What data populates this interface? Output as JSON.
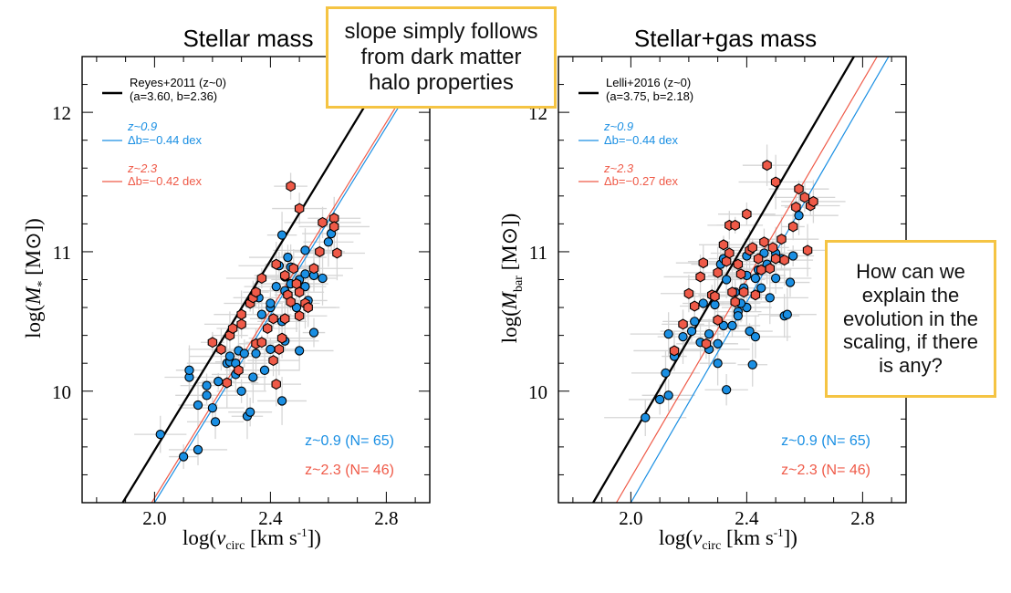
{
  "panels": [
    {
      "title": "Stellar mass",
      "ylabel_main": "log(",
      "ylabel_sym": "M",
      "ylabel_sub": "*",
      "ylabel_unit": " [M⊙])",
      "xlabel_main": "log(",
      "xlabel_sym": "v",
      "xlabel_sub": "circ",
      "xlabel_unit": " [km s",
      "xlabel_sup": "-1",
      "xlabel_close": "])",
      "legend": {
        "ref_name": "Reyes+2011 (z~0)",
        "ref_params": "(a=3.60, b=2.36)",
        "z09_label": "z~0.9",
        "z09_offset": "Δb=−0.44 dex",
        "z23_label": "z~2.3",
        "z23_offset": "Δb=−0.42 dex"
      },
      "count_z09": "z~0.9  (N= 65)",
      "count_z23": "z~2.3  (N= 46)"
    },
    {
      "title": "Stellar+gas mass",
      "ylabel_main": "log(",
      "ylabel_sym": "M",
      "ylabel_sub": "bar",
      "ylabel_unit": " [M⊙])",
      "xlabel_main": "log(",
      "xlabel_sym": "v",
      "xlabel_sub": "circ",
      "xlabel_unit": " [km s",
      "xlabel_sup": "-1",
      "xlabel_close": "])",
      "legend": {
        "ref_name": "Lelli+2016 (z~0)",
        "ref_params": "(a=3.75, b=2.18)",
        "z09_label": "z~0.9",
        "z09_offset": "Δb=−0.44 dex",
        "z23_label": "z~2.3",
        "z23_offset": "Δb=−0.27 dex"
      },
      "count_z09": "z~0.9  (N= 65)",
      "count_z23": "z~2.3  (N= 46)"
    }
  ],
  "callouts": {
    "top": "slope simply follows from dark matter halo properties",
    "right": "How can we explain the evolution in the scaling, if there is any?"
  },
  "colors": {
    "z09": "#1a8fe3",
    "z23": "#ef5a48",
    "reference": "#000000",
    "errorbar": "#d6d6d6",
    "callout_border": "#f5c443"
  },
  "chart_data": [
    {
      "type": "scatter",
      "title": "Stellar mass",
      "xlabel": "log(v_circ [km s^-1])",
      "ylabel": "log(M_* [M_sun])",
      "xlim": [
        1.75,
        2.95
      ],
      "ylim": [
        9.2,
        12.4
      ],
      "xticks": [
        2.0,
        2.4,
        2.8
      ],
      "yticks": [
        10,
        11,
        12
      ],
      "lines": [
        {
          "name": "Reyes+2011 (z~0)",
          "color": "#000000",
          "points": [
            [
              1.89,
              9.2
            ],
            [
              2.83,
              12.4
            ]
          ]
        },
        {
          "name": "z~0.9",
          "color": "#1a8fe3",
          "points": [
            [
              2.0,
              9.2
            ],
            [
              2.95,
              12.4
            ]
          ]
        },
        {
          "name": "z~2.3",
          "color": "#ef5a48",
          "points": [
            [
              1.99,
              9.2
            ],
            [
              2.94,
              12.4
            ]
          ]
        }
      ],
      "series": [
        {
          "name": "z~0.9",
          "marker": "circle",
          "color": "#1a8fe3",
          "points": [
            [
              2.02,
              9.69
            ],
            [
              2.1,
              9.53
            ],
            [
              2.12,
              10.1
            ],
            [
              2.12,
              10.15
            ],
            [
              2.15,
              9.58
            ],
            [
              2.15,
              9.9
            ],
            [
              2.18,
              9.97
            ],
            [
              2.18,
              10.04
            ],
            [
              2.2,
              9.88
            ],
            [
              2.21,
              9.78
            ],
            [
              2.22,
              10.07
            ],
            [
              2.25,
              10.2
            ],
            [
              2.26,
              10.21
            ],
            [
              2.26,
              10.25
            ],
            [
              2.28,
              10.12
            ],
            [
              2.28,
              10.2
            ],
            [
              2.29,
              10.29
            ],
            [
              2.3,
              10.0
            ],
            [
              2.31,
              10.27
            ],
            [
              2.32,
              9.82
            ],
            [
              2.33,
              9.85
            ],
            [
              2.34,
              10.1
            ],
            [
              2.35,
              10.27
            ],
            [
              2.36,
              10.67
            ],
            [
              2.37,
              10.55
            ],
            [
              2.38,
              10.15
            ],
            [
              2.4,
              10.3
            ],
            [
              2.4,
              10.6
            ],
            [
              2.4,
              10.63
            ],
            [
              2.42,
              10.75
            ],
            [
              2.43,
              10.9
            ],
            [
              2.44,
              10.5
            ],
            [
              2.44,
              9.93
            ],
            [
              2.45,
              10.72
            ],
            [
              2.45,
              10.82
            ],
            [
              2.45,
              10.36
            ],
            [
              2.47,
              10.89
            ],
            [
              2.47,
              10.77
            ],
            [
              2.49,
              10.6
            ],
            [
              2.5,
              10.29
            ],
            [
              2.5,
              10.8
            ],
            [
              2.52,
              10.75
            ],
            [
              2.52,
              10.84
            ],
            [
              2.52,
              11.01
            ],
            [
              2.53,
              10.65
            ],
            [
              2.55,
              10.42
            ],
            [
              2.55,
              10.83
            ],
            [
              2.58,
              10.81
            ],
            [
              2.6,
              11.07
            ],
            [
              2.61,
              11.13
            ],
            [
              2.44,
              11.12
            ],
            [
              2.46,
              10.96
            ]
          ]
        },
        {
          "name": "z~2.3",
          "marker": "hexagon",
          "color": "#ef5a48",
          "points": [
            [
              2.2,
              10.35
            ],
            [
              2.23,
              10.3
            ],
            [
              2.25,
              10.06
            ],
            [
              2.26,
              10.4
            ],
            [
              2.27,
              10.45
            ],
            [
              2.29,
              10.15
            ],
            [
              2.3,
              10.55
            ],
            [
              2.3,
              10.48
            ],
            [
              2.33,
              10.63
            ],
            [
              2.34,
              10.67
            ],
            [
              2.35,
              10.71
            ],
            [
              2.35,
              10.34
            ],
            [
              2.37,
              10.81
            ],
            [
              2.37,
              10.35
            ],
            [
              2.39,
              10.45
            ],
            [
              2.41,
              10.52
            ],
            [
              2.41,
              10.22
            ],
            [
              2.42,
              10.91
            ],
            [
              2.42,
              10.05
            ],
            [
              2.43,
              10.3
            ],
            [
              2.44,
              10.38
            ],
            [
              2.45,
              10.52
            ],
            [
              2.46,
              10.69
            ],
            [
              2.47,
              10.64
            ],
            [
              2.47,
              11.47
            ],
            [
              2.48,
              10.88
            ],
            [
              2.49,
              10.77
            ],
            [
              2.5,
              10.54
            ],
            [
              2.5,
              11.31
            ],
            [
              2.52,
              10.63
            ],
            [
              2.53,
              10.6
            ],
            [
              2.55,
              10.88
            ],
            [
              2.57,
              11.0
            ],
            [
              2.58,
              11.21
            ],
            [
              2.62,
              11.24
            ],
            [
              2.62,
              11.18
            ],
            [
              2.63,
              10.99
            ],
            [
              2.45,
              10.83
            ],
            [
              2.5,
              10.71
            ]
          ]
        }
      ],
      "annotations": [
        "z~0.9 (N= 65)",
        "z~2.3 (N= 46)"
      ]
    },
    {
      "type": "scatter",
      "title": "Stellar+gas mass",
      "xlabel": "log(v_circ [km s^-1])",
      "ylabel": "log(M_bar [M_sun])",
      "xlim": [
        1.75,
        2.95
      ],
      "ylim": [
        9.2,
        12.4
      ],
      "xticks": [
        2.0,
        2.4,
        2.8
      ],
      "yticks": [
        10,
        11,
        12
      ],
      "lines": [
        {
          "name": "Lelli+2016 (z~0)",
          "color": "#000000",
          "points": [
            [
              1.87,
              9.2
            ],
            [
              2.77,
              12.4
            ]
          ]
        },
        {
          "name": "z~0.9",
          "color": "#1a8fe3",
          "points": [
            [
              2.0,
              9.2
            ],
            [
              2.89,
              12.4
            ]
          ]
        },
        {
          "name": "z~2.3",
          "color": "#ef5a48",
          "points": [
            [
              1.95,
              9.2
            ],
            [
              2.85,
              12.4
            ]
          ]
        }
      ],
      "series": [
        {
          "name": "z~0.9",
          "marker": "circle",
          "color": "#1a8fe3",
          "points": [
            [
              2.05,
              9.81
            ],
            [
              2.1,
              9.94
            ],
            [
              2.12,
              10.13
            ],
            [
              2.13,
              9.97
            ],
            [
              2.13,
              10.41
            ],
            [
              2.15,
              10.25
            ],
            [
              2.18,
              10.39
            ],
            [
              2.21,
              10.43
            ],
            [
              2.22,
              10.5
            ],
            [
              2.24,
              10.35
            ],
            [
              2.25,
              10.63
            ],
            [
              2.27,
              10.3
            ],
            [
              2.27,
              10.41
            ],
            [
              2.29,
              10.62
            ],
            [
              2.3,
              10.2
            ],
            [
              2.3,
              10.34
            ],
            [
              2.31,
              10.91
            ],
            [
              2.32,
              10.47
            ],
            [
              2.33,
              10.01
            ],
            [
              2.33,
              10.8
            ],
            [
              2.35,
              10.47
            ],
            [
              2.36,
              10.71
            ],
            [
              2.37,
              10.57
            ],
            [
              2.37,
              10.54
            ],
            [
              2.39,
              10.74
            ],
            [
              2.4,
              10.6
            ],
            [
              2.4,
              10.83
            ],
            [
              2.4,
              10.97
            ],
            [
              2.41,
              10.43
            ],
            [
              2.42,
              10.19
            ],
            [
              2.43,
              10.81
            ],
            [
              2.44,
              10.87
            ],
            [
              2.45,
              10.74
            ],
            [
              2.46,
              10.99
            ],
            [
              2.47,
              10.91
            ],
            [
              2.48,
              10.67
            ],
            [
              2.5,
              10.99
            ],
            [
              2.5,
              10.81
            ],
            [
              2.52,
              10.95
            ],
            [
              2.53,
              10.54
            ],
            [
              2.54,
              10.55
            ],
            [
              2.55,
              10.78
            ],
            [
              2.56,
              10.97
            ],
            [
              2.58,
              11.26
            ],
            [
              2.43,
              10.39
            ],
            [
              2.38,
              10.63
            ],
            [
              2.32,
              10.95
            ]
          ]
        },
        {
          "name": "z~2.3",
          "marker": "hexagon",
          "color": "#ef5a48",
          "points": [
            [
              2.15,
              10.29
            ],
            [
              2.18,
              10.48
            ],
            [
              2.2,
              10.7
            ],
            [
              2.22,
              10.61
            ],
            [
              2.24,
              10.82
            ],
            [
              2.25,
              10.92
            ],
            [
              2.26,
              10.34
            ],
            [
              2.28,
              10.69
            ],
            [
              2.29,
              10.68
            ],
            [
              2.3,
              10.85
            ],
            [
              2.3,
              10.51
            ],
            [
              2.32,
              11.05
            ],
            [
              2.33,
              10.93
            ],
            [
              2.34,
              10.99
            ],
            [
              2.34,
              11.19
            ],
            [
              2.35,
              10.71
            ],
            [
              2.36,
              10.64
            ],
            [
              2.36,
              11.19
            ],
            [
              2.37,
              10.91
            ],
            [
              2.38,
              10.84
            ],
            [
              2.39,
              10.71
            ],
            [
              2.4,
              11.27
            ],
            [
              2.41,
              11.01
            ],
            [
              2.42,
              11.03
            ],
            [
              2.43,
              10.69
            ],
            [
              2.44,
              10.95
            ],
            [
              2.45,
              10.87
            ],
            [
              2.46,
              11.07
            ],
            [
              2.47,
              11.62
            ],
            [
              2.48,
              10.88
            ],
            [
              2.49,
              11.03
            ],
            [
              2.5,
              11.5
            ],
            [
              2.52,
              11.09
            ],
            [
              2.53,
              10.94
            ],
            [
              2.56,
              11.18
            ],
            [
              2.58,
              11.45
            ],
            [
              2.6,
              11.39
            ],
            [
              2.61,
              11.01
            ],
            [
              2.62,
              11.33
            ],
            [
              2.63,
              11.36
            ],
            [
              2.57,
              11.32
            ],
            [
              2.5,
              10.95
            ]
          ]
        }
      ],
      "annotations": [
        "z~0.9 (N= 65)",
        "z~2.3 (N= 46)"
      ]
    }
  ]
}
